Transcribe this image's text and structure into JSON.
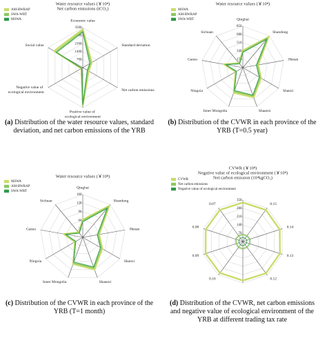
{
  "chart_data": [
    {
      "type": "radar",
      "panel": "(a)",
      "caption": "Distribution of the water resource values, standard deviation, and net carbon emissions of the YRB",
      "title": "Water resource values (￥10⁸)",
      "subtitle": "Net carbon emissions (tCO₂)",
      "categories": [
        "Economic value",
        "Standard deviation",
        "Net carbon emissions",
        "Positive value of ecological environment",
        "Negative value of ecological environment",
        "Social value"
      ],
      "series": [
        {
          "name": "AM-BWRAP",
          "color": "#c9dc6a",
          "values": [
            3350,
            900,
            600,
            3300,
            150,
            2900
          ]
        },
        {
          "name": "SWA-WRT",
          "color": "#8cc862",
          "values": [
            3200,
            800,
            500,
            3250,
            120,
            2750
          ]
        },
        {
          "name": "MSWA",
          "color": "#2f9a4a",
          "values": [
            3100,
            700,
            450,
            3200,
            100,
            2650
          ]
        }
      ],
      "ylim": [
        0,
        3500
      ],
      "yticks": [
        700,
        1400,
        2100,
        2800,
        3500
      ],
      "grid": true
    },
    {
      "type": "radar",
      "panel": "(b)",
      "caption": "Distribution of the CVWR in each province of the YRB (T=0.5 year)",
      "title": "Water resource values (￥10⁸)",
      "categories": [
        "Qinghai",
        "Shandong",
        "Henan",
        "Shanxi",
        "Shaanxi",
        "Inner Mongolia",
        "Ningxia",
        "Gansu",
        "Sichuan"
      ],
      "series": [
        {
          "name": "MSWA",
          "color": "#c9dc6a",
          "values": [
            350,
            820,
            320,
            430,
            650,
            550,
            170,
            390,
            120
          ]
        },
        {
          "name": "AM-BWRAP",
          "color": "#8cc862",
          "values": [
            330,
            790,
            300,
            410,
            620,
            520,
            160,
            370,
            110
          ]
        },
        {
          "name": "SWA-WRT",
          "color": "#2f9a4a",
          "values": [
            310,
            760,
            280,
            390,
            600,
            500,
            150,
            350,
            100
          ]
        }
      ],
      "ylim": [
        0,
        850
      ],
      "yticks": [
        170,
        340,
        510,
        680,
        850
      ],
      "grid": true
    },
    {
      "type": "radar",
      "panel": "(c)",
      "caption": "Distribution of the CVWR in each province of the YRB (T=1 month)",
      "title": "Water resource values (￥10⁸)",
      "categories": [
        "Qinghai",
        "Shandong",
        "Henan",
        "Shanxi",
        "Shaanxi",
        "Inner Mongolia",
        "Ningxia",
        "Gansu",
        "Sichuan"
      ],
      "series": [
        {
          "name": "MSWA",
          "color": "#c9dc6a",
          "values": [
            66,
            154,
            62,
            84,
            128,
            106,
            34,
            72,
            24
          ]
        },
        {
          "name": "AM-BWRAP",
          "color": "#8cc862",
          "values": [
            62,
            148,
            58,
            80,
            122,
            102,
            32,
            68,
            22
          ]
        },
        {
          "name": "SWA-WRT",
          "color": "#2f9a4a",
          "values": [
            58,
            142,
            55,
            76,
            118,
            98,
            30,
            64,
            20
          ]
        }
      ],
      "ylim": [
        0,
        160
      ],
      "yticks": [
        32,
        64,
        96,
        128,
        160
      ],
      "grid": true
    },
    {
      "type": "radar",
      "panel": "(d)",
      "caption": "Distribution of the CVWR, net carbon emissions and negative value of ecological environment of the YRB at different trading tax rate",
      "title": "CVWR (￥10⁸)",
      "subtitle": "Negative value of ecological environment (￥10⁸)",
      "subtitle2": "Net carbon emission (10⁴kgCO₂)",
      "categories": [
        null,
        "0.15",
        "0.14",
        "0.13",
        "0.12",
        null,
        "0.10",
        "0.09",
        "0.08",
        "0.07"
      ],
      "series": [
        {
          "name": "CVWR",
          "color": "#c9dc6a",
          "values": [
            330,
            330,
            328,
            330,
            332,
            330,
            329,
            331,
            330,
            330
          ]
        },
        {
          "name": "Net carbon emissions",
          "color": "#8cc862",
          "values": [
            60,
            58,
            62,
            60,
            59,
            61,
            60,
            58,
            62,
            60
          ]
        },
        {
          "name": "Negative value of ecological environment",
          "color": "#2f9a4a",
          "values": [
            35,
            34,
            36,
            35,
            33,
            36,
            35,
            34,
            36,
            35
          ]
        }
      ],
      "ylim": [
        0,
        350
      ],
      "yticks": [
        70,
        140,
        210,
        280,
        350
      ],
      "grid": true
    }
  ]
}
